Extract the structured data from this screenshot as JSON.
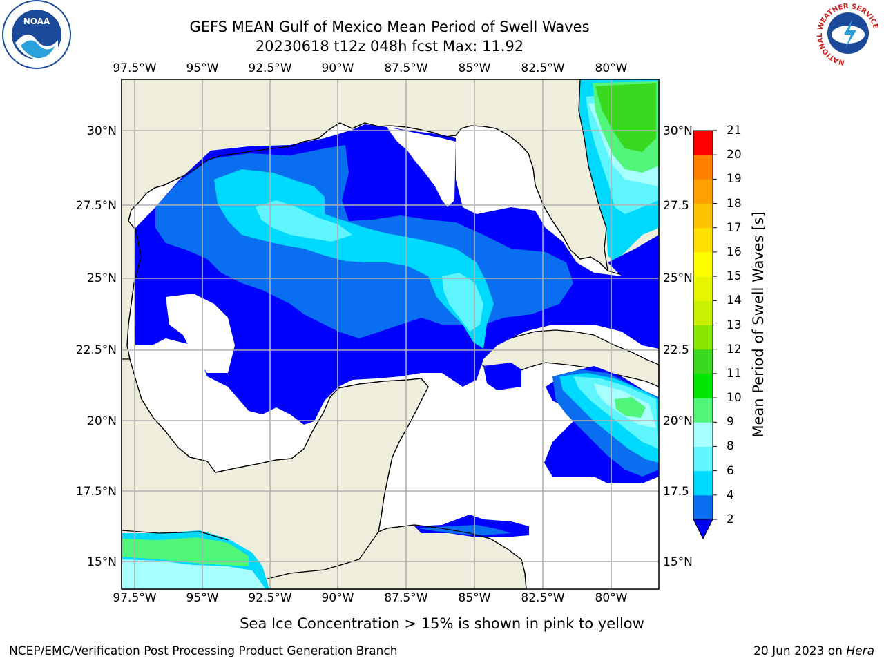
{
  "header": {
    "title_line1": "GEFS MEAN Gulf of Mexico Mean Period of Swell Waves",
    "title_line2": "20230618 t12z 048h fcst   Max: 11.92"
  },
  "logos": {
    "noaa": {
      "text": "NOAA",
      "ring_text": "NATIONAL OCEANIC AND ATMOSPHERIC ADMINISTRATION · U.S. DEPARTMENT OF COMMERCE"
    },
    "nws": {
      "ring_text": "NATIONAL WEATHER SERVICE"
    }
  },
  "map": {
    "lon_ticks": [
      "97.5°W",
      "95°W",
      "92.5°W",
      "90°W",
      "87.5°W",
      "85°W",
      "82.5°W",
      "80°W"
    ],
    "lat_ticks_left": [
      "30°N",
      "27.5°N",
      "25°N",
      "22.5°N",
      "20°N",
      "17.5°N",
      "15°N"
    ],
    "lat_ticks_right": [
      "30°N",
      "27.5",
      "25°N",
      "22.5",
      "20°N",
      "17.5",
      "15°N"
    ],
    "colors": {
      "land": "#efeedd",
      "water": "#ffffff",
      "grid": "#b0b0b0",
      "coast": "#000000"
    }
  },
  "colorbar": {
    "title": "Mean Period of Swell Waves [s]",
    "labels": [
      "21",
      "20",
      "19",
      "18",
      "17",
      "16",
      "15",
      "14",
      "13",
      "12",
      "11",
      "10",
      "9",
      "8",
      "6",
      "4",
      "2"
    ],
    "colors": [
      "#0a6ef0",
      "#00d9ff",
      "#5ff5ff",
      "#a8ffff",
      "#50f57a",
      "#00e600",
      "#3ad81f",
      "#88e600",
      "#c8f000",
      "#e6f500",
      "#ffff00",
      "#ffe000",
      "#ffc200",
      "#ffa000",
      "#ff8000",
      "#ff5a00",
      "#ff3000",
      "#ff0000"
    ],
    "extend_color": "#0000ff"
  },
  "notes": {
    "ice": "Sea Ice Concentration > 15% is shown in pink to yellow"
  },
  "footer": {
    "left": "NCEP/EMC/Verification Post Processing Product Generation Branch",
    "right_prefix": "20 Jun 2023 on ",
    "right_host": "Hera"
  }
}
